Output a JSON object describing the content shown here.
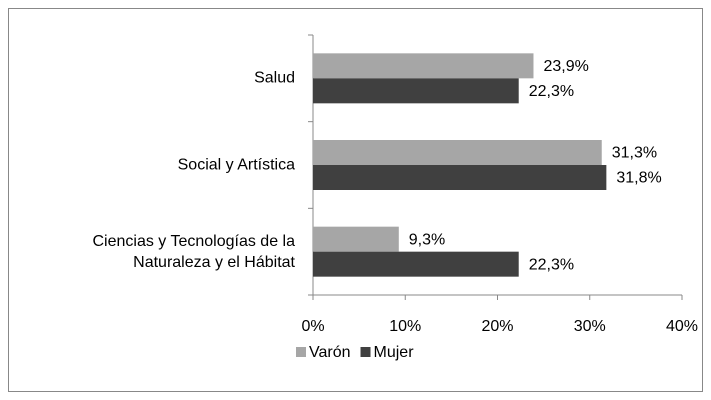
{
  "chart_data": {
    "type": "bar",
    "orientation": "horizontal",
    "categories": [
      "Salud",
      "Social y Artística",
      "Ciencias y Tecnologías de la Naturaleza y el Hábitat"
    ],
    "series": [
      {
        "name": "Varón",
        "color": "#a6a6a6",
        "values": [
          23.9,
          31.3,
          9.3
        ],
        "value_labels": [
          "23,9%",
          "31,3%",
          "9,3%"
        ]
      },
      {
        "name": "Mujer",
        "color": "#404040",
        "values": [
          22.3,
          31.8,
          22.3
        ],
        "value_labels": [
          "22,3%",
          "31,8%",
          "22,3%"
        ]
      }
    ],
    "xlim": [
      0,
      40
    ],
    "xticks": [
      {
        "value": 0,
        "label": "0%"
      },
      {
        "value": 10,
        "label": "10%"
      },
      {
        "value": 20,
        "label": "20%"
      },
      {
        "value": 30,
        "label": "30%"
      },
      {
        "value": 40,
        "label": "40%"
      }
    ],
    "legend": "bottom"
  }
}
